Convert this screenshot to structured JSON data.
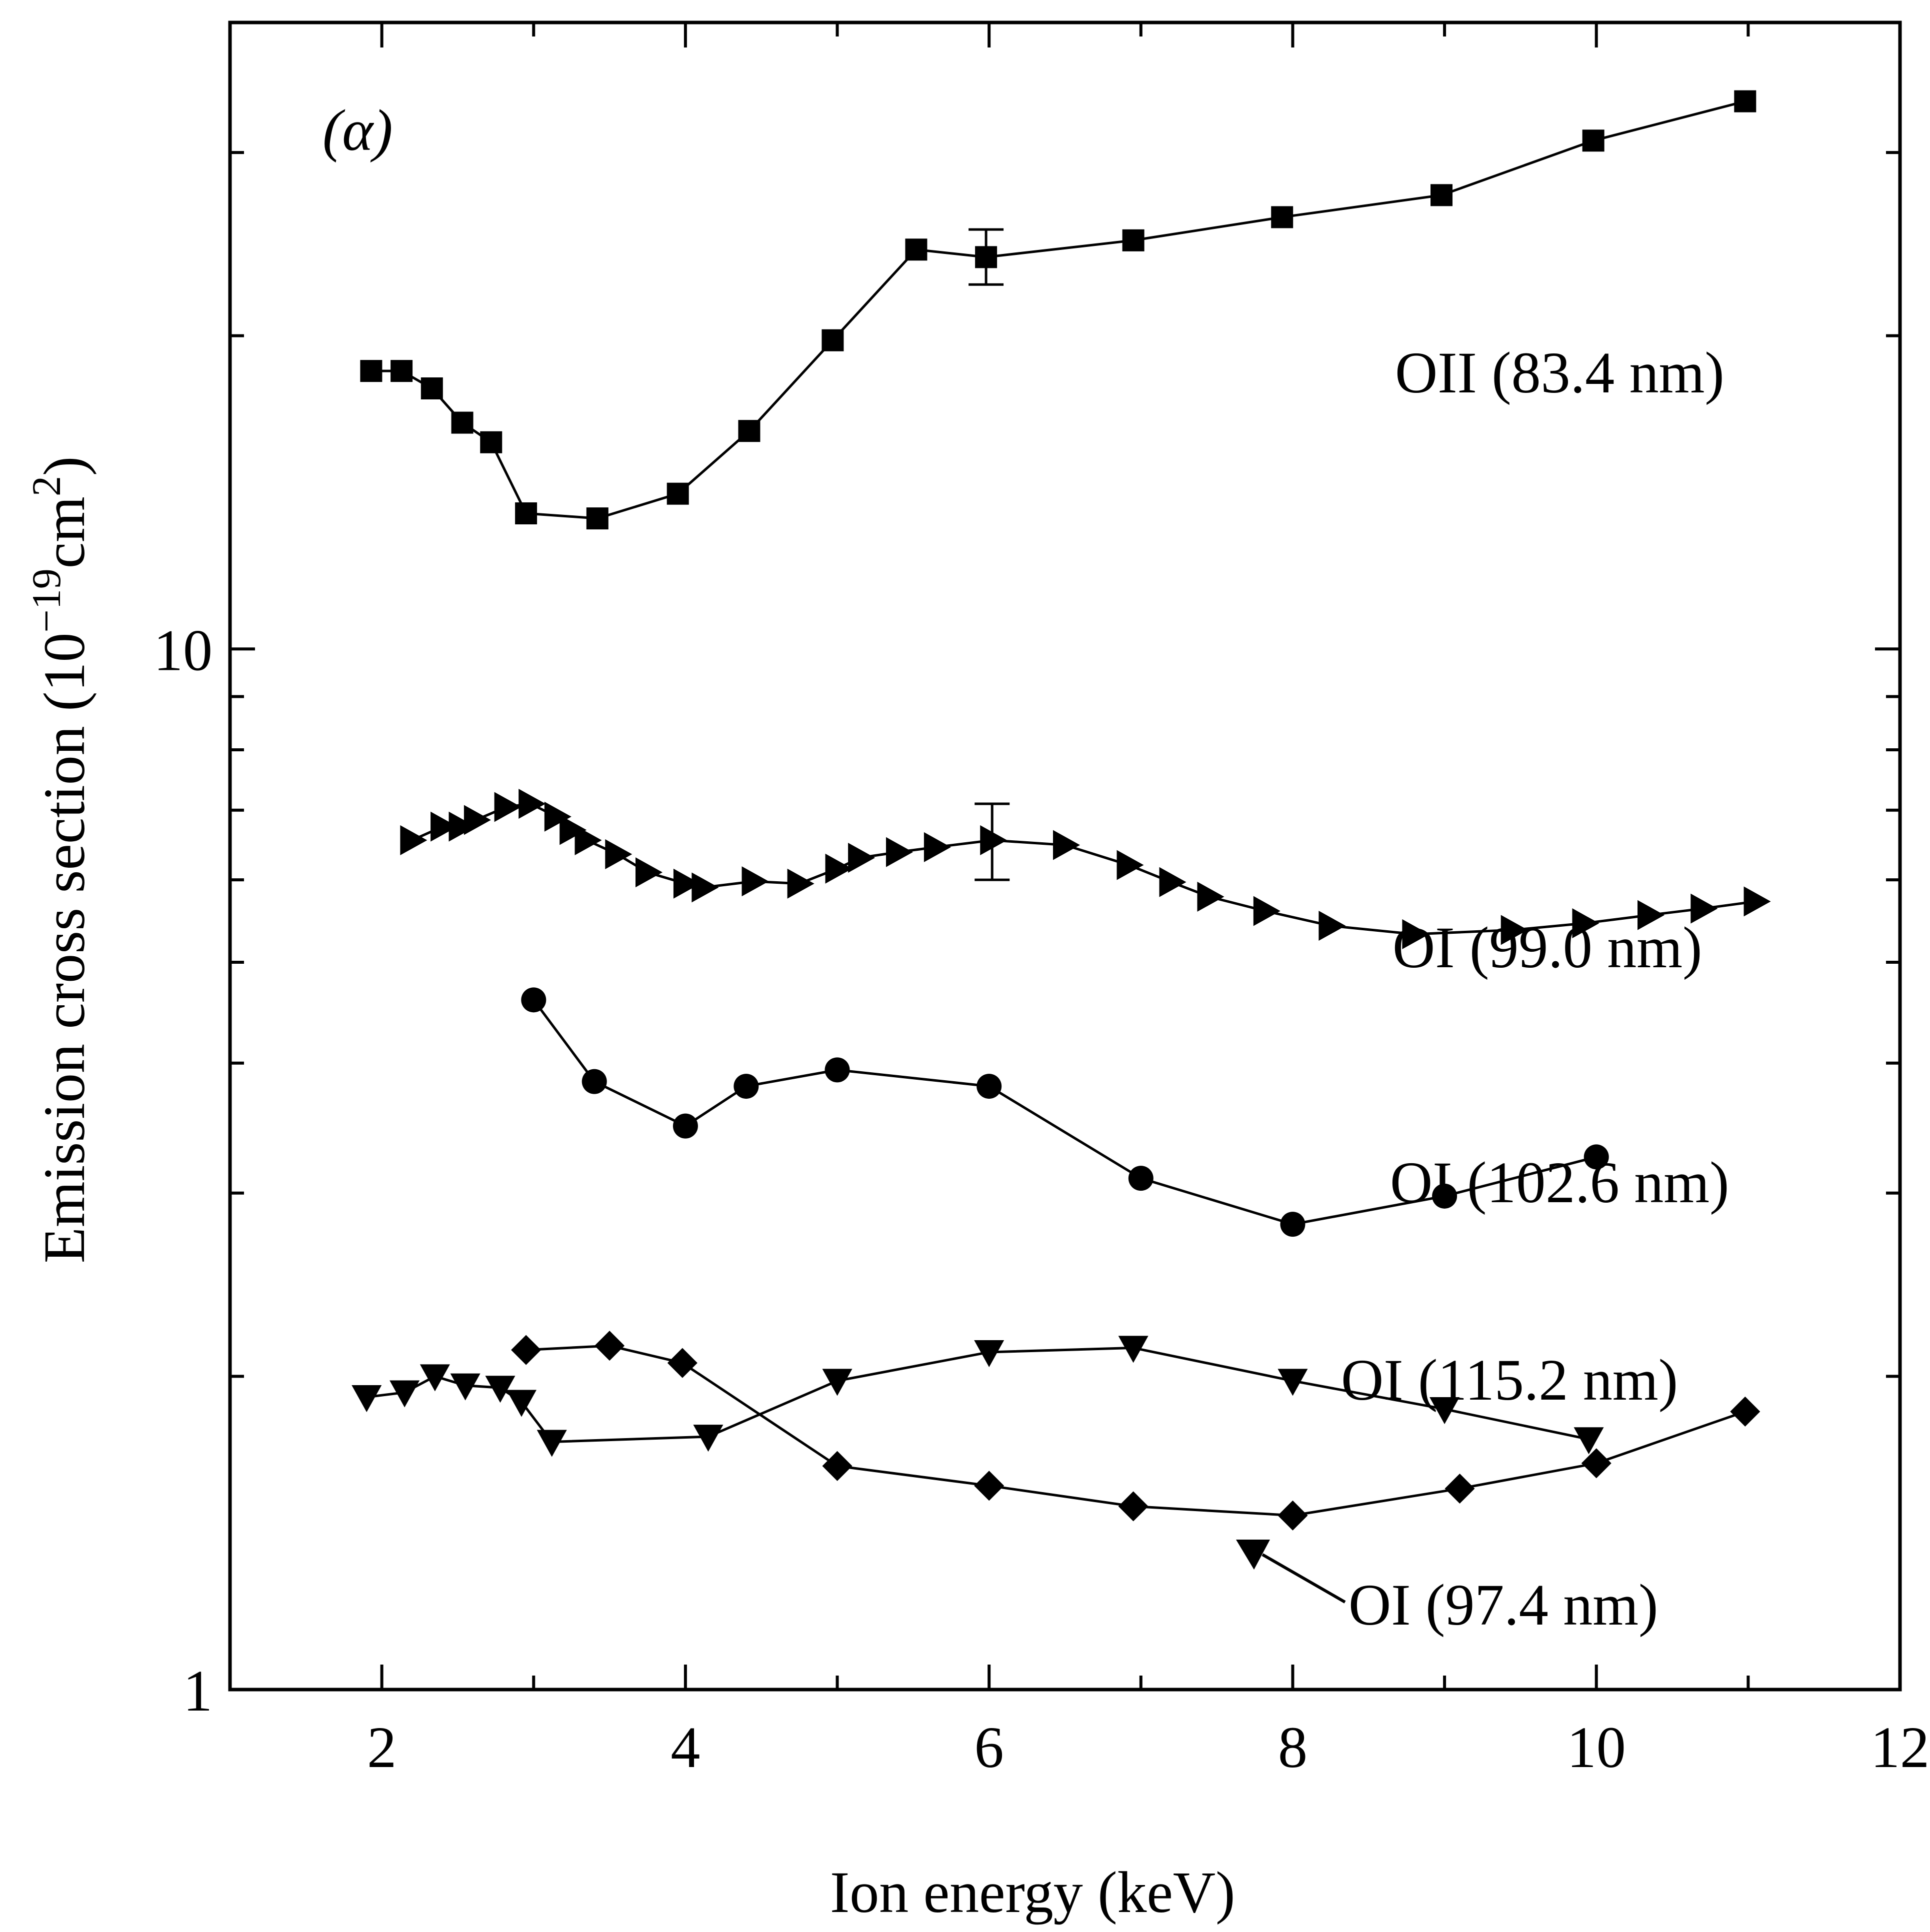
{
  "chart_data": {
    "type": "line",
    "panel_label": "(α)",
    "xlabel": "Ion energy (keV)",
    "ylabel_main": "Emission cross section (10",
    "ylabel_sup1": "−19",
    "ylabel_mid": "cm",
    "ylabel_sup2": "2",
    "ylabel_end": ")",
    "xscale": "linear",
    "yscale": "log",
    "xlim": [
      1,
      12
    ],
    "ylim": [
      1,
      40
    ],
    "xticks": [
      2,
      4,
      6,
      8,
      10,
      12
    ],
    "xtick_labels": [
      "2",
      "4",
      "6",
      "8",
      "10",
      "12"
    ],
    "ytick_labels": [
      {
        "value": 1,
        "label": "1"
      },
      {
        "value": 10,
        "label": "10"
      }
    ],
    "series": [
      {
        "name": "OII (83.4 nm)",
        "label": "OII (83.4 nm)",
        "marker": "square",
        "x": [
          1.93,
          2.13,
          2.33,
          2.53,
          2.72,
          2.95,
          3.42,
          3.95,
          4.42,
          4.97,
          5.52,
          5.98,
          6.95,
          7.93,
          8.98,
          9.98,
          10.98
        ],
        "y": [
          18.5,
          18.5,
          17.8,
          16.5,
          15.8,
          13.5,
          13.35,
          14.1,
          16.2,
          19.8,
          24.2,
          23.8,
          24.7,
          26.0,
          27.3,
          30.8,
          33.6
        ],
        "error_bars": [
          {
            "x": 5.98,
            "y": 23.8,
            "low": 22.4,
            "high": 25.3
          }
        ]
      },
      {
        "name": "OI (99.0 nm)",
        "label": "OI (99.0 nm)",
        "marker": "triangle-right",
        "x": [
          2.2,
          2.4,
          2.52,
          2.62,
          2.82,
          2.98,
          3.15,
          3.25,
          3.35,
          3.55,
          3.75,
          4.0,
          4.12,
          4.45,
          4.75,
          5.0,
          5.15,
          5.4,
          5.65,
          6.02,
          6.5,
          6.92,
          7.2,
          7.45,
          7.82,
          8.25,
          8.8,
          9.45,
          9.92,
          10.35,
          10.7,
          11.05
        ],
        "y": [
          6.55,
          6.75,
          6.75,
          6.85,
          7.05,
          7.1,
          6.9,
          6.7,
          6.55,
          6.35,
          6.1,
          5.95,
          5.9,
          5.98,
          5.95,
          6.15,
          6.3,
          6.38,
          6.45,
          6.55,
          6.48,
          6.2,
          5.97,
          5.78,
          5.6,
          5.42,
          5.32,
          5.37,
          5.45,
          5.55,
          5.63,
          5.72
        ],
        "error_bars": [
          {
            "x": 6.02,
            "y": 6.55,
            "low": 6.0,
            "high": 7.1
          }
        ]
      },
      {
        "name": "OI (102.6 nm)",
        "label": "OI (102.6 nm)",
        "marker": "circle",
        "x": [
          3.0,
          3.4,
          4.0,
          4.4,
          5.0,
          6.0,
          7.0,
          8.0,
          9.0,
          10.0
        ],
        "y": [
          4.6,
          3.84,
          3.48,
          3.8,
          3.94,
          3.8,
          3.1,
          2.8,
          2.98,
          3.25
        ],
        "error_bars": []
      },
      {
        "name": "OI (115.2 nm)",
        "label": "OI (115.2 nm)",
        "marker": "triangle-down",
        "x": [
          1.9,
          2.15,
          2.35,
          2.55,
          2.78,
          2.92,
          3.12,
          4.15,
          5.0,
          6.0,
          6.95,
          8.0,
          9.0,
          9.95
        ],
        "y": [
          1.91,
          1.93,
          2.0,
          1.96,
          1.95,
          1.89,
          1.73,
          1.75,
          1.98,
          2.11,
          2.13,
          1.98,
          1.86,
          1.74
        ],
        "error_bars": []
      },
      {
        "name": "OI (97.4 nm)",
        "label": "OI (97.4 nm)",
        "marker": "diamond",
        "x": [
          2.95,
          3.5,
          3.98,
          5.0,
          6.0,
          6.95,
          8.0,
          9.1,
          10.0,
          10.98
        ],
        "y": [
          2.12,
          2.14,
          2.06,
          1.64,
          1.57,
          1.5,
          1.47,
          1.56,
          1.65,
          1.85
        ],
        "error_bars": []
      }
    ]
  }
}
